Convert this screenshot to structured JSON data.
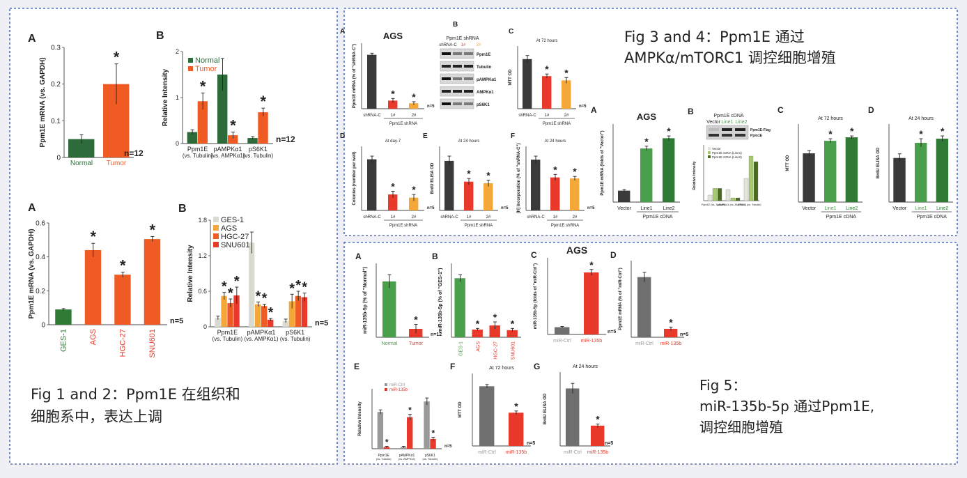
{
  "captions": {
    "fig12": "Fig 1 and 2：Ppm1E 在组织和\n细胞系中，表达上调",
    "fig34": "Fig 3 and 4：Ppm1E 通过\nAMPKα/mTORC1 调控细胞增殖",
    "fig5": "Fig 5：\nmiR-135b-5p 通过Ppm1E,\n调控细胞增殖"
  },
  "colors": {
    "normal_green": "#2e6b3a",
    "tumor_orange": "#f05a23",
    "dark": "#3a3a3a",
    "red": "#e8392a",
    "yellow": "#f4a83a",
    "light_green": "#4aa04a",
    "mid_green": "#2f7a35",
    "grey": "#6f6f6f",
    "ges_grey": "#d9dbd0"
  },
  "chart_data": [
    {
      "id": "f1a",
      "panel": "A",
      "type": "bar",
      "categories": [
        "Normal",
        "Tumor"
      ],
      "values": [
        0.05,
        0.2
      ],
      "errors": [
        0.012,
        0.055
      ],
      "star": [
        false,
        true
      ],
      "ylabel": "Ppm1E mRNA (vs. GAPDH)",
      "ylim": [
        0,
        0.3
      ],
      "yticks": [
        0,
        0.1,
        0.2,
        0.3
      ],
      "n": "n=12"
    },
    {
      "id": "f1b",
      "panel": "B",
      "type": "bar",
      "categories": [
        "Ppm1E",
        "pAMPKα1",
        "pS6K1"
      ],
      "sublabels": [
        "(vs. Tubulin)",
        "(vs. AMPKα1)",
        "(vs. Tubulin)"
      ],
      "series": [
        {
          "name": "Normal",
          "values": [
            0.25,
            1.5,
            0.12
          ],
          "errors": [
            0.05,
            0.35,
            0.03
          ],
          "star": [
            false,
            false,
            false
          ]
        },
        {
          "name": "Tumor",
          "values": [
            0.92,
            0.18,
            0.68
          ],
          "errors": [
            0.18,
            0.07,
            0.09
          ],
          "star": [
            true,
            true,
            true
          ]
        }
      ],
      "ylabel": "Relative Intensity",
      "ylim": [
        0,
        2
      ],
      "yticks": [
        0,
        1,
        2
      ],
      "n": "n=12"
    },
    {
      "id": "f2a",
      "panel": "A",
      "type": "bar",
      "categories": [
        "GES-1",
        "AGS",
        "HGC-27",
        "SNU601"
      ],
      "values": [
        0.09,
        0.44,
        0.295,
        0.505
      ],
      "errors": [
        0.005,
        0.04,
        0.015,
        0.015
      ],
      "star": [
        false,
        true,
        true,
        true
      ],
      "ylabel": "Ppm1E mRNA (vs. GAPDH)",
      "ylim": [
        0,
        0.6
      ],
      "yticks": [
        0,
        0.2,
        0.4,
        0.6
      ],
      "n": "n=5"
    },
    {
      "id": "f2b",
      "panel": "B",
      "type": "bar",
      "categories": [
        "Ppm1E",
        "pAMPKα1",
        "pS6K1"
      ],
      "sublabels": [
        "(vs. Tubulin)",
        "(vs. AMPKα1)",
        "(vs. Tubulin)"
      ],
      "series": [
        {
          "name": "GES-1",
          "values": [
            0.15,
            1.42,
            0.1
          ],
          "errors": [
            0.03,
            0.18,
            0.03
          ],
          "star": [
            false,
            false,
            false
          ]
        },
        {
          "name": "AGS",
          "values": [
            0.52,
            0.38,
            0.43
          ],
          "errors": [
            0.06,
            0.04,
            0.12
          ],
          "star": [
            true,
            true,
            true
          ]
        },
        {
          "name": "HGC-27",
          "values": [
            0.4,
            0.35,
            0.52
          ],
          "errors": [
            0.07,
            0.03,
            0.08
          ],
          "star": [
            true,
            true,
            true
          ]
        },
        {
          "name": "SNU601",
          "values": [
            0.53,
            0.12,
            0.5
          ],
          "errors": [
            0.14,
            0.02,
            0.07
          ],
          "star": [
            true,
            true,
            true
          ]
        }
      ],
      "ylabel": "Relative Intensity",
      "ylim": [
        0,
        1.8
      ],
      "yticks": [
        0,
        0.6,
        1.2,
        1.8
      ],
      "n": "n=5"
    },
    {
      "id": "f3a",
      "panel": "A",
      "type": "bar",
      "title": "AGS",
      "categories": [
        "shRNA-C",
        "1#",
        "2#"
      ],
      "values": [
        100,
        15,
        10
      ],
      "errors": [
        3,
        4,
        3
      ],
      "star": [
        false,
        true,
        true
      ],
      "ylabel": "Ppm1E mRNA (% of \"shRNA-C\")",
      "group": "Ppm1E shRNA",
      "n": "n=5"
    },
    {
      "id": "f3c",
      "panel": "C",
      "type": "bar",
      "title": "At 72 hours",
      "categories": [
        "shRNA-C",
        "1#",
        "2#"
      ],
      "values": [
        0.7,
        0.46,
        0.4
      ],
      "errors": [
        0.05,
        0.03,
        0.04
      ],
      "star": [
        false,
        true,
        true
      ],
      "ylabel": "MTT OD",
      "group": "Ppm1E shRNA",
      "n": "n=5"
    },
    {
      "id": "f3d",
      "panel": "D",
      "type": "bar",
      "title": "At day-7",
      "categories": [
        "shRNA-C",
        "1#",
        "2#"
      ],
      "values": [
        32,
        10,
        8
      ],
      "errors": [
        2,
        2,
        2
      ],
      "star": [
        false,
        true,
        true
      ],
      "ylabel": "Colonies (number per well)",
      "group": "Ppm1E shRNA",
      "n": "n=5"
    },
    {
      "id": "f3e",
      "panel": "E",
      "type": "bar",
      "title": "At 24 hours",
      "categories": [
        "shRNA-C",
        "1#",
        "2#"
      ],
      "values": [
        0.31,
        0.18,
        0.17
      ],
      "errors": [
        0.03,
        0.02,
        0.02
      ],
      "star": [
        false,
        true,
        true
      ],
      "ylabel": "BrdU ELISA OD",
      "group": "Ppm1E shRNA",
      "n": "n=5"
    },
    {
      "id": "f3f",
      "panel": "F",
      "type": "bar",
      "title": "At 24 hours",
      "categories": [
        "shRNA-C",
        "1#",
        "2#"
      ],
      "values": [
        100,
        65,
        63
      ],
      "errors": [
        7,
        6,
        4
      ],
      "star": [
        false,
        true,
        true
      ],
      "ylabel": "[H] Incorporation (% of \"shRNA-C\")",
      "group": "Ppm1E shRNA",
      "n": "n=5"
    },
    {
      "id": "f4a",
      "panel": "A",
      "type": "bar",
      "title": "AGS",
      "categories": [
        "Vector",
        "Line1",
        "Line2"
      ],
      "values": [
        1,
        4.7,
        5.6
      ],
      "errors": [
        0.1,
        0.2,
        0.2
      ],
      "star": [
        false,
        true,
        true
      ],
      "ylabel": "Ppm1E mRNA (folds of \"Vector\")",
      "group": "Ppm1E cDNA"
    },
    {
      "id": "f4c",
      "panel": "C",
      "type": "bar",
      "title": "At 72 hours",
      "categories": [
        "Vector",
        "Line1",
        "Line2"
      ],
      "values": [
        0.7,
        0.88,
        0.93
      ],
      "errors": [
        0.04,
        0.03,
        0.02
      ],
      "star": [
        false,
        true,
        true
      ],
      "ylabel": "MTT OD",
      "group": "Ppm1E cDNA"
    },
    {
      "id": "f4d",
      "panel": "D",
      "type": "bar",
      "title": "At 24 hours",
      "categories": [
        "Vector",
        "Line1",
        "Line2"
      ],
      "values": [
        0.32,
        0.43,
        0.46
      ],
      "errors": [
        0.03,
        0.03,
        0.02
      ],
      "star": [
        false,
        true,
        true
      ],
      "ylabel": "BrdU ELISA OD",
      "group": "Ppm1E cDNA"
    },
    {
      "id": "f5a",
      "panel": "A",
      "type": "bar",
      "categories": [
        "Normal",
        "Tumor"
      ],
      "values": [
        100,
        15
      ],
      "errors": [
        12,
        8
      ],
      "star": [
        false,
        true
      ],
      "ylabel": "miR-135b-5p (% of \"Normal\")",
      "n": "n=12"
    },
    {
      "id": "f5b",
      "panel": "B",
      "type": "bar",
      "categories": [
        "GES-1",
        "AGS",
        "HGC-27",
        "SNU601"
      ],
      "values": [
        100,
        13,
        20,
        12
      ],
      "errors": [
        6,
        2,
        6,
        3
      ],
      "star": [
        false,
        true,
        true,
        true
      ],
      "ylabel": "miR-135b-5p (% of \"GES-1\")"
    },
    {
      "id": "f5c",
      "panel": "C",
      "type": "bar",
      "title": "AGS",
      "categories": [
        "miR-Ctrl",
        "miR-135b"
      ],
      "values": [
        1,
        8.5
      ],
      "errors": [
        0.1,
        0.4
      ],
      "star": [
        false,
        true
      ],
      "ylabel": "miR-135b-5p (folds of \"miR-Ctrl\")",
      "n": "n=5"
    },
    {
      "id": "f5d",
      "panel": "D",
      "type": "bar",
      "categories": [
        "miR-Ctrl",
        "miR-135b"
      ],
      "values": [
        100,
        14
      ],
      "errors": [
        8,
        3
      ],
      "star": [
        false,
        true
      ],
      "ylabel": "Ppm1E mRNA (% of \"miR-Ctrl\")",
      "n": "n=5"
    },
    {
      "id": "f5e",
      "panel": "E",
      "type": "bar",
      "categories": [
        "Ppm1E",
        "pAMPKα1",
        "pS6K1"
      ],
      "sublabels": [
        "(vs. Tubulin)",
        "(vs. AMPKα1)",
        "(vs. Tubulin)"
      ],
      "series": [
        {
          "name": "miR-Ctrl",
          "values": [
            1.05,
            0.05,
            1.35
          ],
          "errors": [
            0.06,
            0.02,
            0.1
          ],
          "star": [
            false,
            false,
            false
          ]
        },
        {
          "name": "miR-135b",
          "values": [
            0.05,
            0.9,
            0.28
          ],
          "errors": [
            0.02,
            0.08,
            0.05
          ],
          "star": [
            true,
            true,
            true
          ]
        }
      ],
      "ylabel": "Relative Intensity",
      "n": "n=5"
    },
    {
      "id": "f5f",
      "panel": "F",
      "type": "bar",
      "title": "At 72 hours",
      "categories": [
        "miR-Ctrl",
        "miR-135b"
      ],
      "values": [
        0.7,
        0.39
      ],
      "errors": [
        0.02,
        0.02
      ],
      "star": [
        false,
        true
      ],
      "ylabel": "MTT OD",
      "n": "n=5"
    },
    {
      "id": "f5g",
      "panel": "G",
      "type": "bar",
      "title": "At 24 hours",
      "categories": [
        "miR-Ctrl",
        "miR-135b"
      ],
      "values": [
        0.34,
        0.12
      ],
      "errors": [
        0.03,
        0.01
      ],
      "star": [
        false,
        true
      ],
      "ylabel": "BrdU ELISA OD",
      "n": "n=5"
    }
  ],
  "blots": {
    "f3b": {
      "panel": "B",
      "title": "Ppm1E shRNA",
      "lanes": [
        "shRNA-C",
        "1#",
        "2#"
      ],
      "rows": [
        "Ppm1E",
        "Tubulin",
        "pAMPKα1",
        "AMPKα1",
        "pS6K1"
      ]
    },
    "f4b": {
      "panel": "B",
      "title": "Ppm1E cDNA",
      "lanes": [
        "Vector",
        "Line1",
        "Line2"
      ],
      "rows": [
        "Ppm1E-Flag",
        "Ppm1E"
      ],
      "legend": [
        "Vector",
        "Ppm1E cDNA (Line1)",
        "Ppm1E cDNA (Line2)"
      ],
      "ylabel": "Relative Intensity",
      "categories": [
        "Ppm1E (vs. Tubulin)",
        "pAMPKα1 (vs. AMPKα1)",
        "pS6K1 (vs. Tubulin)"
      ]
    }
  }
}
